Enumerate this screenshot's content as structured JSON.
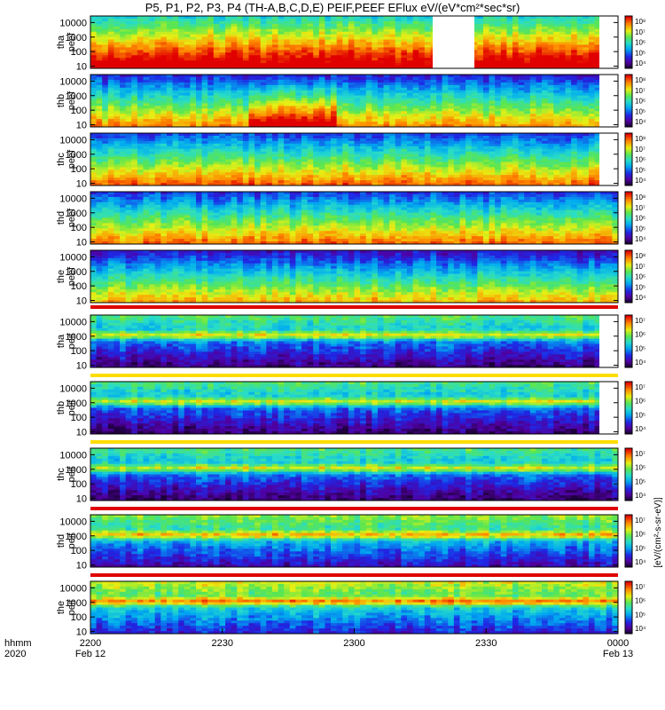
{
  "title": "P5, P1, P2, P3, P4 (TH-A,B,C,D,E) PEIF,PEEF EFlux eV/(eV*cm²*sec*sr)",
  "chart_data": {
    "type": "heatmap",
    "title": "P5, P1, P2, P3, P4 (TH-A,B,C,D,E) PEIF,PEEF EFlux eV/(eV*cm²*sec*sr)",
    "x_axis": {
      "label_line1": "hhmm",
      "label_line2": "2020",
      "ticks": [
        {
          "label": "2200",
          "sub": "Feb 12"
        },
        {
          "label": "2230",
          "sub": ""
        },
        {
          "label": "2300",
          "sub": ""
        },
        {
          "label": "2330",
          "sub": ""
        },
        {
          "label": "0000",
          "sub": "Feb 13"
        }
      ]
    },
    "y_ticks": [
      "10",
      "100",
      "1000",
      "10000"
    ],
    "colorbar_label": "[eV/(cm²-s-sr-eV)]",
    "panels": [
      {
        "id": "tha-peef",
        "label1": "tha",
        "label2": "peef",
        "cbar": [
          "10⁴",
          "10⁵",
          "10⁶",
          "10⁷",
          "10⁸"
        ],
        "base": 0.82
      },
      {
        "id": "thb-peef",
        "label1": "thb",
        "label2": "peef",
        "cbar": [
          "10⁴",
          "10⁵",
          "10⁶",
          "10⁷",
          "10⁸"
        ],
        "base": 0.55
      },
      {
        "id": "thc-peef",
        "label1": "thc",
        "label2": "peef",
        "cbar": [
          "10⁴",
          "10⁵",
          "10⁶",
          "10⁷",
          "10⁸"
        ],
        "base": 0.6
      },
      {
        "id": "thd-peef",
        "label1": "thd",
        "label2": "peef",
        "cbar": [
          "10⁴",
          "10⁵",
          "10⁶",
          "10⁷",
          "10⁸"
        ],
        "base": 0.58
      },
      {
        "id": "the-peef",
        "label1": "the",
        "label2": "peef",
        "cbar": [
          "10⁴",
          "10⁵",
          "10⁶",
          "10⁷",
          "10⁸"
        ],
        "base": 0.5
      },
      {
        "id": "tha-peif",
        "label1": "tha",
        "label2": "peif",
        "cbar": [
          "10⁴",
          "10⁵",
          "10⁶",
          "10⁷"
        ],
        "base": 0.32
      },
      {
        "id": "thb-peif",
        "label1": "thb",
        "label2": "peif",
        "cbar": [
          "10⁴",
          "10⁵",
          "10⁶",
          "10⁷"
        ],
        "base": 0.3
      },
      {
        "id": "thc-peif",
        "label1": "thc",
        "label2": "peif",
        "cbar": [
          "10⁴",
          "10⁵",
          "10⁶",
          "10⁷"
        ],
        "base": 0.3
      },
      {
        "id": "thd-peif",
        "label1": "thd",
        "label2": "peif",
        "cbar": [
          "10⁴",
          "10⁵",
          "10⁶",
          "10⁷"
        ],
        "base": 0.38
      },
      {
        "id": "the-peif",
        "label1": "the",
        "label2": "peif",
        "cbar": [
          "10⁴",
          "10⁵",
          "10⁶",
          "10⁷"
        ],
        "base": 0.45
      }
    ]
  }
}
